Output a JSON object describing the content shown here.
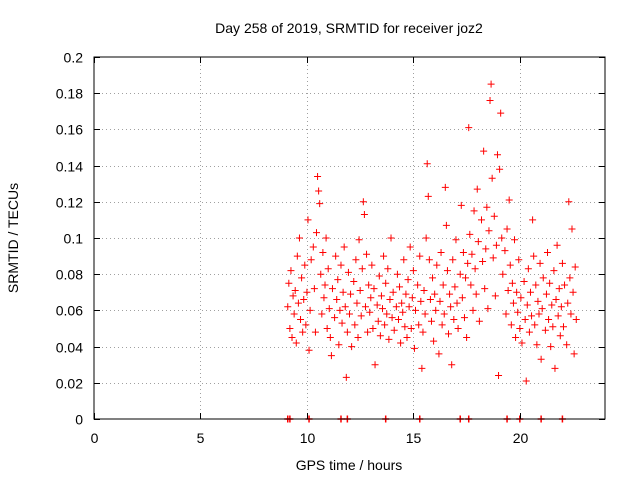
{
  "chart_data": {
    "type": "scatter",
    "title": "Day 258 of 2019, SRMTID for receiver joz2",
    "xlabel": "GPS time / hours",
    "ylabel": "SRMTID / TECUs",
    "xlim": [
      0,
      24
    ],
    "ylim": [
      0,
      0.2
    ],
    "xticks": [
      0,
      5,
      10,
      15,
      20
    ],
    "xtick_labels": [
      "0",
      "5",
      "10",
      "15",
      "20"
    ],
    "yticks": [
      0,
      0.02,
      0.04,
      0.06,
      0.08,
      0.1,
      0.12,
      0.14,
      0.16,
      0.18,
      0.2
    ],
    "ytick_labels": [
      "0",
      "0.02",
      "0.04",
      "0.06",
      "0.08",
      "0.1",
      "0.12",
      "0.14",
      "0.16",
      "0.18",
      "0.2"
    ],
    "grid": true,
    "marker": "+",
    "color": "#ff0000",
    "series": [
      {
        "name": "SRMTID",
        "points": [
          [
            9.1,
            0.062
          ],
          [
            9.15,
            0.075
          ],
          [
            9.2,
            0.05
          ],
          [
            9.25,
            0.082
          ],
          [
            9.3,
            0.045
          ],
          [
            9.35,
            0.068
          ],
          [
            9.4,
            0.058
          ],
          [
            9.45,
            0.071
          ],
          [
            9.5,
            0.042
          ],
          [
            9.55,
            0.09
          ],
          [
            9.6,
            0.064
          ],
          [
            9.65,
            0.1
          ],
          [
            9.7,
            0.055
          ],
          [
            9.75,
            0.078
          ],
          [
            9.8,
            0.048
          ],
          [
            9.85,
            0.066
          ],
          [
            9.9,
            0.085
          ],
          [
            9.95,
            0.052
          ],
          [
            10.0,
            0.07
          ],
          [
            10.05,
            0.11
          ],
          [
            10.1,
            0.038
          ],
          [
            10.15,
            0.06
          ],
          [
            10.2,
            0.088
          ],
          [
            10.3,
            0.095
          ],
          [
            10.35,
            0.072
          ],
          [
            10.4,
            0.048
          ],
          [
            10.45,
            0.103
          ],
          [
            10.5,
            0.134
          ],
          [
            10.55,
            0.126
          ],
          [
            10.6,
            0.119
          ],
          [
            10.65,
            0.08
          ],
          [
            10.7,
            0.058
          ],
          [
            10.75,
            0.092
          ],
          [
            10.8,
            0.067
          ],
          [
            10.85,
            0.074
          ],
          [
            10.9,
            0.1
          ],
          [
            10.95,
            0.05
          ],
          [
            11.0,
            0.083
          ],
          [
            11.05,
            0.061
          ],
          [
            11.1,
            0.045
          ],
          [
            11.15,
            0.035
          ],
          [
            11.2,
            0.072
          ],
          [
            11.3,
            0.056
          ],
          [
            11.35,
            0.09
          ],
          [
            11.4,
            0.066
          ],
          [
            11.45,
            0.077
          ],
          [
            11.5,
            0.041
          ],
          [
            11.55,
            0.06
          ],
          [
            11.6,
            0.085
          ],
          [
            11.65,
            0.053
          ],
          [
            11.7,
            0.07
          ],
          [
            11.75,
            0.095
          ],
          [
            11.8,
            0.062
          ],
          [
            11.85,
            0.023
          ],
          [
            11.9,
            0.048
          ],
          [
            11.95,
            0.081
          ],
          [
            12.0,
            0.058
          ],
          [
            12.05,
            0.069
          ],
          [
            12.1,
            0.04
          ],
          [
            12.2,
            0.076
          ],
          [
            12.25,
            0.052
          ],
          [
            12.3,
            0.088
          ],
          [
            12.35,
            0.064
          ],
          [
            12.4,
            0.045
          ],
          [
            12.45,
            0.099
          ],
          [
            12.5,
            0.071
          ],
          [
            12.55,
            0.057
          ],
          [
            12.6,
            0.083
          ],
          [
            12.65,
            0.12
          ],
          [
            12.7,
            0.113
          ],
          [
            12.75,
            0.062
          ],
          [
            12.8,
            0.091
          ],
          [
            12.85,
            0.048
          ],
          [
            12.9,
            0.074
          ],
          [
            12.95,
            0.059
          ],
          [
            13.0,
            0.067
          ],
          [
            13.05,
            0.085
          ],
          [
            13.1,
            0.05
          ],
          [
            13.15,
            0.072
          ],
          [
            13.2,
            0.03
          ],
          [
            13.3,
            0.063
          ],
          [
            13.35,
            0.054
          ],
          [
            13.4,
            0.079
          ],
          [
            13.45,
            0.046
          ],
          [
            13.5,
            0.068
          ],
          [
            13.55,
            0.061
          ],
          [
            13.6,
            0.09
          ],
          [
            13.65,
            0.052
          ],
          [
            13.7,
            0.075
          ],
          [
            13.75,
            0.058
          ],
          [
            13.8,
            0.083
          ],
          [
            13.85,
            0.044
          ],
          [
            13.9,
            0.066
          ],
          [
            13.95,
            0.1
          ],
          [
            14.0,
            0.056
          ],
          [
            14.05,
            0.07
          ],
          [
            14.1,
            0.049
          ],
          [
            14.2,
            0.062
          ],
          [
            14.25,
            0.08
          ],
          [
            14.3,
            0.055
          ],
          [
            14.35,
            0.073
          ],
          [
            14.4,
            0.042
          ],
          [
            14.45,
            0.064
          ],
          [
            14.5,
            0.059
          ],
          [
            14.55,
            0.088
          ],
          [
            14.6,
            0.051
          ],
          [
            14.65,
            0.069
          ],
          [
            14.7,
            0.045
          ],
          [
            14.75,
            0.077
          ],
          [
            14.8,
            0.062
          ],
          [
            14.85,
            0.095
          ],
          [
            14.9,
            0.05
          ],
          [
            14.95,
            0.067
          ],
          [
            15.0,
            0.082
          ],
          [
            15.05,
            0.039
          ],
          [
            15.1,
            0.06
          ],
          [
            15.2,
            0.074
          ],
          [
            15.25,
            0.052
          ],
          [
            15.3,
            0.09
          ],
          [
            15.35,
            0.065
          ],
          [
            15.4,
            0.028
          ],
          [
            15.45,
            0.048
          ],
          [
            15.5,
            0.071
          ],
          [
            15.55,
            0.058
          ],
          [
            15.6,
            0.1
          ],
          [
            15.65,
            0.141
          ],
          [
            15.7,
            0.123
          ],
          [
            15.75,
            0.088
          ],
          [
            15.8,
            0.066
          ],
          [
            15.85,
            0.054
          ],
          [
            15.9,
            0.078
          ],
          [
            15.95,
            0.043
          ],
          [
            16.0,
            0.069
          ],
          [
            16.05,
            0.06
          ],
          [
            16.1,
            0.085
          ],
          [
            16.2,
            0.036
          ],
          [
            16.25,
            0.065
          ],
          [
            16.3,
            0.092
          ],
          [
            16.35,
            0.052
          ],
          [
            16.4,
            0.074
          ],
          [
            16.45,
            0.058
          ],
          [
            16.5,
            0.128
          ],
          [
            16.55,
            0.107
          ],
          [
            16.6,
            0.082
          ],
          [
            16.65,
            0.047
          ],
          [
            16.7,
            0.069
          ],
          [
            16.75,
            0.062
          ],
          [
            16.8,
            0.03
          ],
          [
            16.85,
            0.088
          ],
          [
            16.9,
            0.055
          ],
          [
            16.95,
            0.073
          ],
          [
            17.0,
            0.099
          ],
          [
            17.05,
            0.064
          ],
          [
            17.1,
            0.05
          ],
          [
            17.2,
            0.08
          ],
          [
            17.25,
            0.118
          ],
          [
            17.3,
            0.067
          ],
          [
            17.35,
            0.092
          ],
          [
            17.4,
            0.056
          ],
          [
            17.45,
            0.078
          ],
          [
            17.5,
            0.045
          ],
          [
            17.55,
            0.086
          ],
          [
            17.6,
            0.161
          ],
          [
            17.65,
            0.102
          ],
          [
            17.7,
            0.074
          ],
          [
            17.75,
            0.091
          ],
          [
            17.8,
            0.06
          ],
          [
            17.85,
            0.115
          ],
          [
            17.9,
            0.083
          ],
          [
            17.95,
            0.069
          ],
          [
            18.0,
            0.127
          ],
          [
            18.05,
            0.098
          ],
          [
            18.1,
            0.054
          ],
          [
            18.2,
            0.11
          ],
          [
            18.25,
            0.087
          ],
          [
            18.3,
            0.148
          ],
          [
            18.35,
            0.072
          ],
          [
            18.4,
            0.094
          ],
          [
            18.45,
            0.117
          ],
          [
            18.5,
            0.061
          ],
          [
            18.55,
            0.104
          ],
          [
            18.6,
            0.176
          ],
          [
            18.65,
            0.185
          ],
          [
            18.7,
            0.133
          ],
          [
            18.75,
            0.089
          ],
          [
            18.8,
            0.112
          ],
          [
            18.85,
            0.068
          ],
          [
            18.9,
            0.096
          ],
          [
            18.95,
            0.146
          ],
          [
            19.0,
            0.024
          ],
          [
            19.05,
            0.138
          ],
          [
            19.1,
            0.169
          ],
          [
            19.15,
            0.1
          ],
          [
            19.2,
            0.08
          ],
          [
            19.3,
            0.093
          ],
          [
            19.35,
            0.058
          ],
          [
            19.4,
            0.105
          ],
          [
            19.45,
            0.071
          ],
          [
            19.5,
            0.121
          ],
          [
            19.55,
            0.085
          ],
          [
            19.6,
            0.052
          ],
          [
            19.65,
            0.075
          ],
          [
            19.7,
            0.064
          ],
          [
            19.75,
            0.099
          ],
          [
            19.8,
            0.045
          ],
          [
            19.85,
            0.07
          ],
          [
            19.9,
            0.059
          ],
          [
            19.95,
            0.088
          ],
          [
            20.0,
            0.05
          ],
          [
            20.05,
            0.067
          ],
          [
            20.1,
            0.042
          ],
          [
            20.2,
            0.076
          ],
          [
            20.25,
            0.055
          ],
          [
            20.3,
            0.021
          ],
          [
            20.35,
            0.063
          ],
          [
            20.4,
            0.083
          ],
          [
            20.45,
            0.048
          ],
          [
            20.5,
            0.07
          ],
          [
            20.55,
            0.057
          ],
          [
            20.6,
            0.11
          ],
          [
            20.65,
            0.09
          ],
          [
            20.7,
            0.052
          ],
          [
            20.75,
            0.074
          ],
          [
            20.8,
            0.041
          ],
          [
            20.85,
            0.065
          ],
          [
            20.9,
            0.058
          ],
          [
            20.95,
            0.086
          ],
          [
            21.0,
            0.033
          ],
          [
            21.05,
            0.061
          ],
          [
            21.1,
            0.078
          ],
          [
            21.2,
            0.049
          ],
          [
            21.25,
            0.069
          ],
          [
            21.3,
            0.092
          ],
          [
            21.35,
            0.055
          ],
          [
            21.4,
            0.075
          ],
          [
            21.45,
            0.04
          ],
          [
            21.5,
            0.063
          ],
          [
            21.55,
            0.051
          ],
          [
            21.6,
            0.082
          ],
          [
            21.65,
            0.028
          ],
          [
            21.7,
            0.066
          ],
          [
            21.75,
            0.096
          ],
          [
            21.8,
            0.057
          ],
          [
            21.85,
            0.072
          ],
          [
            21.9,
            0.046
          ],
          [
            21.95,
            0.062
          ],
          [
            22.0,
            0.086
          ],
          [
            22.05,
            0.051
          ],
          [
            22.1,
            0.074
          ],
          [
            22.2,
            0.041
          ],
          [
            22.25,
            0.064
          ],
          [
            22.3,
            0.12
          ],
          [
            22.35,
            0.078
          ],
          [
            22.4,
            0.058
          ],
          [
            22.45,
            0.105
          ],
          [
            22.5,
            0.07
          ],
          [
            22.55,
            0.036
          ],
          [
            22.6,
            0.084
          ],
          [
            22.65,
            0.055
          ]
        ]
      }
    ],
    "zero_markers_x": [
      9.1,
      9.2,
      10.1,
      11.6,
      11.9,
      13.7,
      15.3,
      17.2,
      17.6,
      19.4,
      20.0,
      21.0,
      22.0
    ]
  }
}
